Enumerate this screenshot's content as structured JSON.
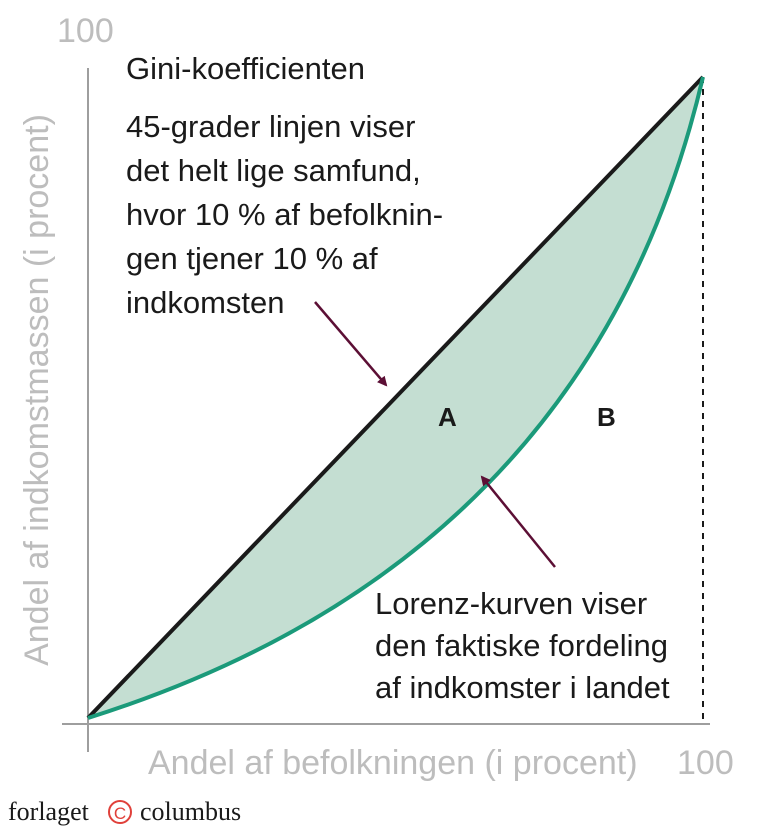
{
  "title": "Gini-koefficienten",
  "equality_note": [
    "45-grader linjen viser",
    "det helt lige samfund,",
    "hvor 10 % af befolknin-",
    "gen tjener 10 % af",
    "indkomsten"
  ],
  "lorenz_note": [
    "Lorenz-kurven viser",
    "den faktiske fordeling",
    "af indkomster i landet"
  ],
  "x_axis": {
    "label": "Andel af befolkningen (i procent)",
    "max_label": "100"
  },
  "y_axis": {
    "label": "Andel af indkomstmassen (i procent)",
    "max_label": "100"
  },
  "regions": {
    "a": "A",
    "b": "B"
  },
  "publisher": {
    "left": "forlaget",
    "mark": "C",
    "right": "columbus"
  },
  "colors": {
    "lorenz_curve": "#1b9a7a",
    "area_fill": "#c4ded2",
    "equality_line": "#1a1a1a",
    "arrow": "#5c0f35",
    "axis": "#9e9e9e",
    "axis_text": "#bdbdbd",
    "publisher_mark": "#e0403a"
  }
}
